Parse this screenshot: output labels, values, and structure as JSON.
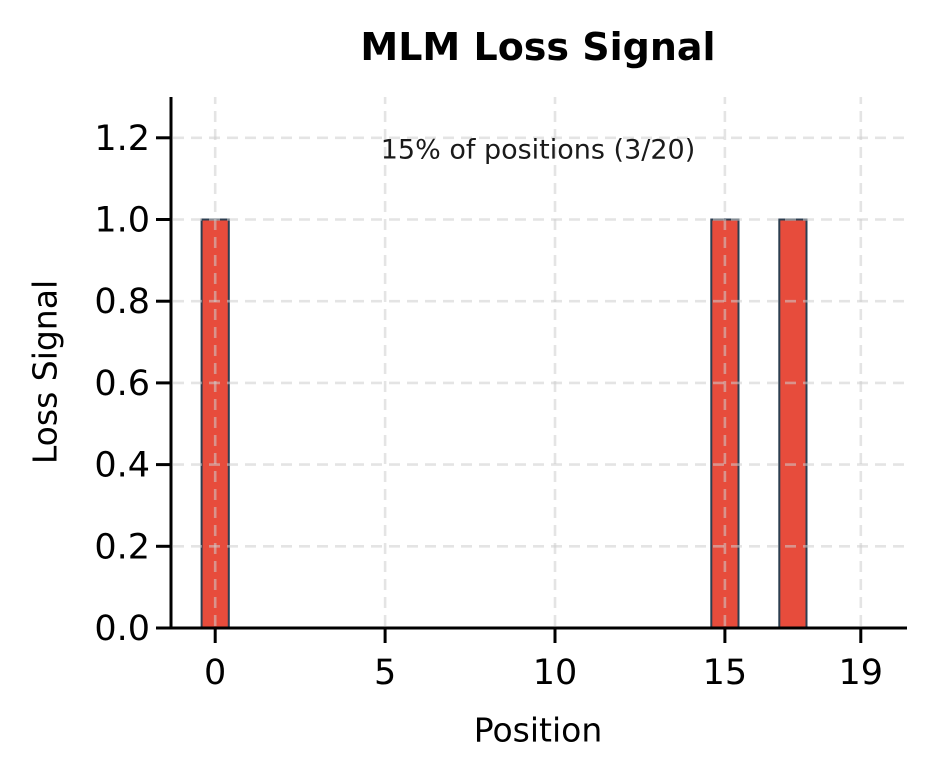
{
  "figure": {
    "background": "#ffffff"
  },
  "chart_data": {
    "type": "bar",
    "title": "MLM Loss Signal",
    "xlabel": "Position",
    "ylabel": "Loss Signal",
    "annotation": "15% of positions (3/20)",
    "x": [
      0,
      1,
      2,
      3,
      4,
      5,
      6,
      7,
      8,
      9,
      10,
      11,
      12,
      13,
      14,
      15,
      16,
      17,
      18,
      19
    ],
    "values": [
      1,
      0,
      0,
      0,
      0,
      0,
      0,
      0,
      0,
      0,
      0,
      0,
      0,
      0,
      0,
      1,
      0,
      1,
      0,
      0
    ],
    "masked_positions": [
      0,
      15,
      17
    ],
    "bar_width": 0.8,
    "xticks": [
      0,
      5,
      10,
      15,
      19
    ],
    "xtick_labels": [
      "0",
      "5",
      "10",
      "15",
      "19"
    ],
    "yticks": [
      0.0,
      0.2,
      0.4,
      0.6,
      0.8,
      1.0,
      1.2
    ],
    "ytick_labels": [
      "0.0",
      "0.2",
      "0.4",
      "0.6",
      "0.8",
      "1.0",
      "1.2"
    ],
    "xlim": [
      -1.3,
      20.3
    ],
    "ylim": [
      0,
      1.3
    ],
    "grid": {
      "style": "dashed",
      "over_bars": true
    },
    "legend": null,
    "colors": {
      "bar_fill": "#e74c3c",
      "bar_edge": "#2c3e50",
      "grid": "#cdcdcd",
      "axis": "#000000",
      "text": "#1a1a1a"
    }
  }
}
